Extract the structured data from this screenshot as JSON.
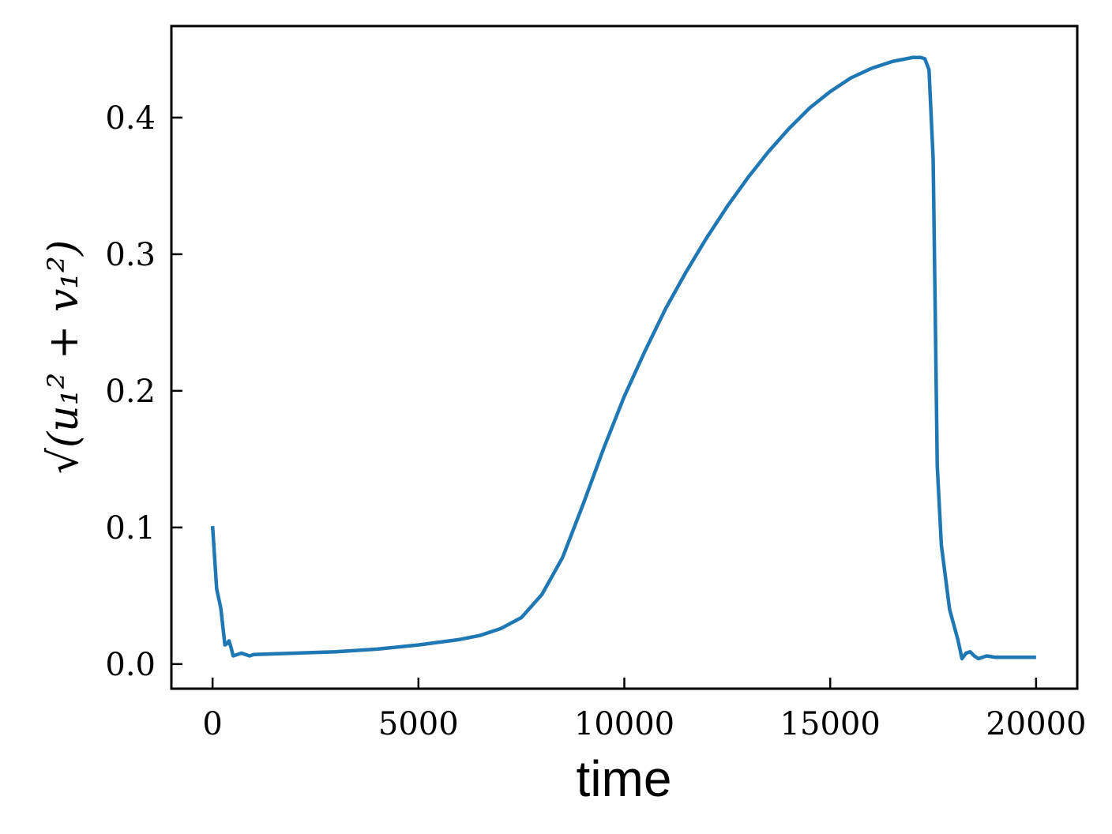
{
  "chart_data": {
    "type": "line",
    "title": "",
    "xlabel": "time",
    "ylabel": "√(u₁² + v₁²)",
    "xlim": [
      -1000,
      21000
    ],
    "ylim": [
      -0.018,
      0.467
    ],
    "x_ticks": [
      0,
      5000,
      10000,
      15000,
      20000
    ],
    "x_tick_labels": [
      "0",
      "5000",
      "10000",
      "15000",
      "20000"
    ],
    "y_ticks": [
      0.0,
      0.1,
      0.2,
      0.3,
      0.4
    ],
    "y_tick_labels": [
      "0.0",
      "0.1",
      "0.2",
      "0.3",
      "0.4"
    ],
    "grid": false,
    "legend": false,
    "series": [
      {
        "color": "#1f77b4",
        "points": [
          [
            0,
            0.101
          ],
          [
            100,
            0.055
          ],
          [
            200,
            0.041
          ],
          [
            300,
            0.014
          ],
          [
            350,
            0.015
          ],
          [
            400,
            0.017
          ],
          [
            450,
            0.012
          ],
          [
            500,
            0.006
          ],
          [
            600,
            0.007
          ],
          [
            700,
            0.008
          ],
          [
            800,
            0.007
          ],
          [
            900,
            0.006
          ],
          [
            1000,
            0.007
          ],
          [
            1500,
            0.0075
          ],
          [
            2000,
            0.008
          ],
          [
            3000,
            0.009
          ],
          [
            4000,
            0.011
          ],
          [
            5000,
            0.014
          ],
          [
            6000,
            0.018
          ],
          [
            6500,
            0.021
          ],
          [
            7000,
            0.026
          ],
          [
            7500,
            0.034
          ],
          [
            8000,
            0.051
          ],
          [
            8500,
            0.078
          ],
          [
            9000,
            0.117
          ],
          [
            9500,
            0.158
          ],
          [
            10000,
            0.196
          ],
          [
            10500,
            0.229
          ],
          [
            11000,
            0.26
          ],
          [
            11500,
            0.287
          ],
          [
            12000,
            0.312
          ],
          [
            12500,
            0.335
          ],
          [
            13000,
            0.356
          ],
          [
            13500,
            0.375
          ],
          [
            14000,
            0.392
          ],
          [
            14500,
            0.407
          ],
          [
            15000,
            0.419
          ],
          [
            15500,
            0.429
          ],
          [
            16000,
            0.436
          ],
          [
            16500,
            0.441
          ],
          [
            17000,
            0.444
          ],
          [
            17200,
            0.444
          ],
          [
            17300,
            0.443
          ],
          [
            17400,
            0.435
          ],
          [
            17500,
            0.37
          ],
          [
            17550,
            0.26
          ],
          [
            17600,
            0.145
          ],
          [
            17700,
            0.087
          ],
          [
            17900,
            0.04
          ],
          [
            18100,
            0.018
          ],
          [
            18200,
            0.004
          ],
          [
            18300,
            0.008
          ],
          [
            18400,
            0.009
          ],
          [
            18500,
            0.006
          ],
          [
            18600,
            0.004
          ],
          [
            18700,
            0.005
          ],
          [
            18800,
            0.006
          ],
          [
            19000,
            0.005
          ],
          [
            19500,
            0.005
          ],
          [
            20000,
            0.005
          ]
        ]
      }
    ]
  }
}
